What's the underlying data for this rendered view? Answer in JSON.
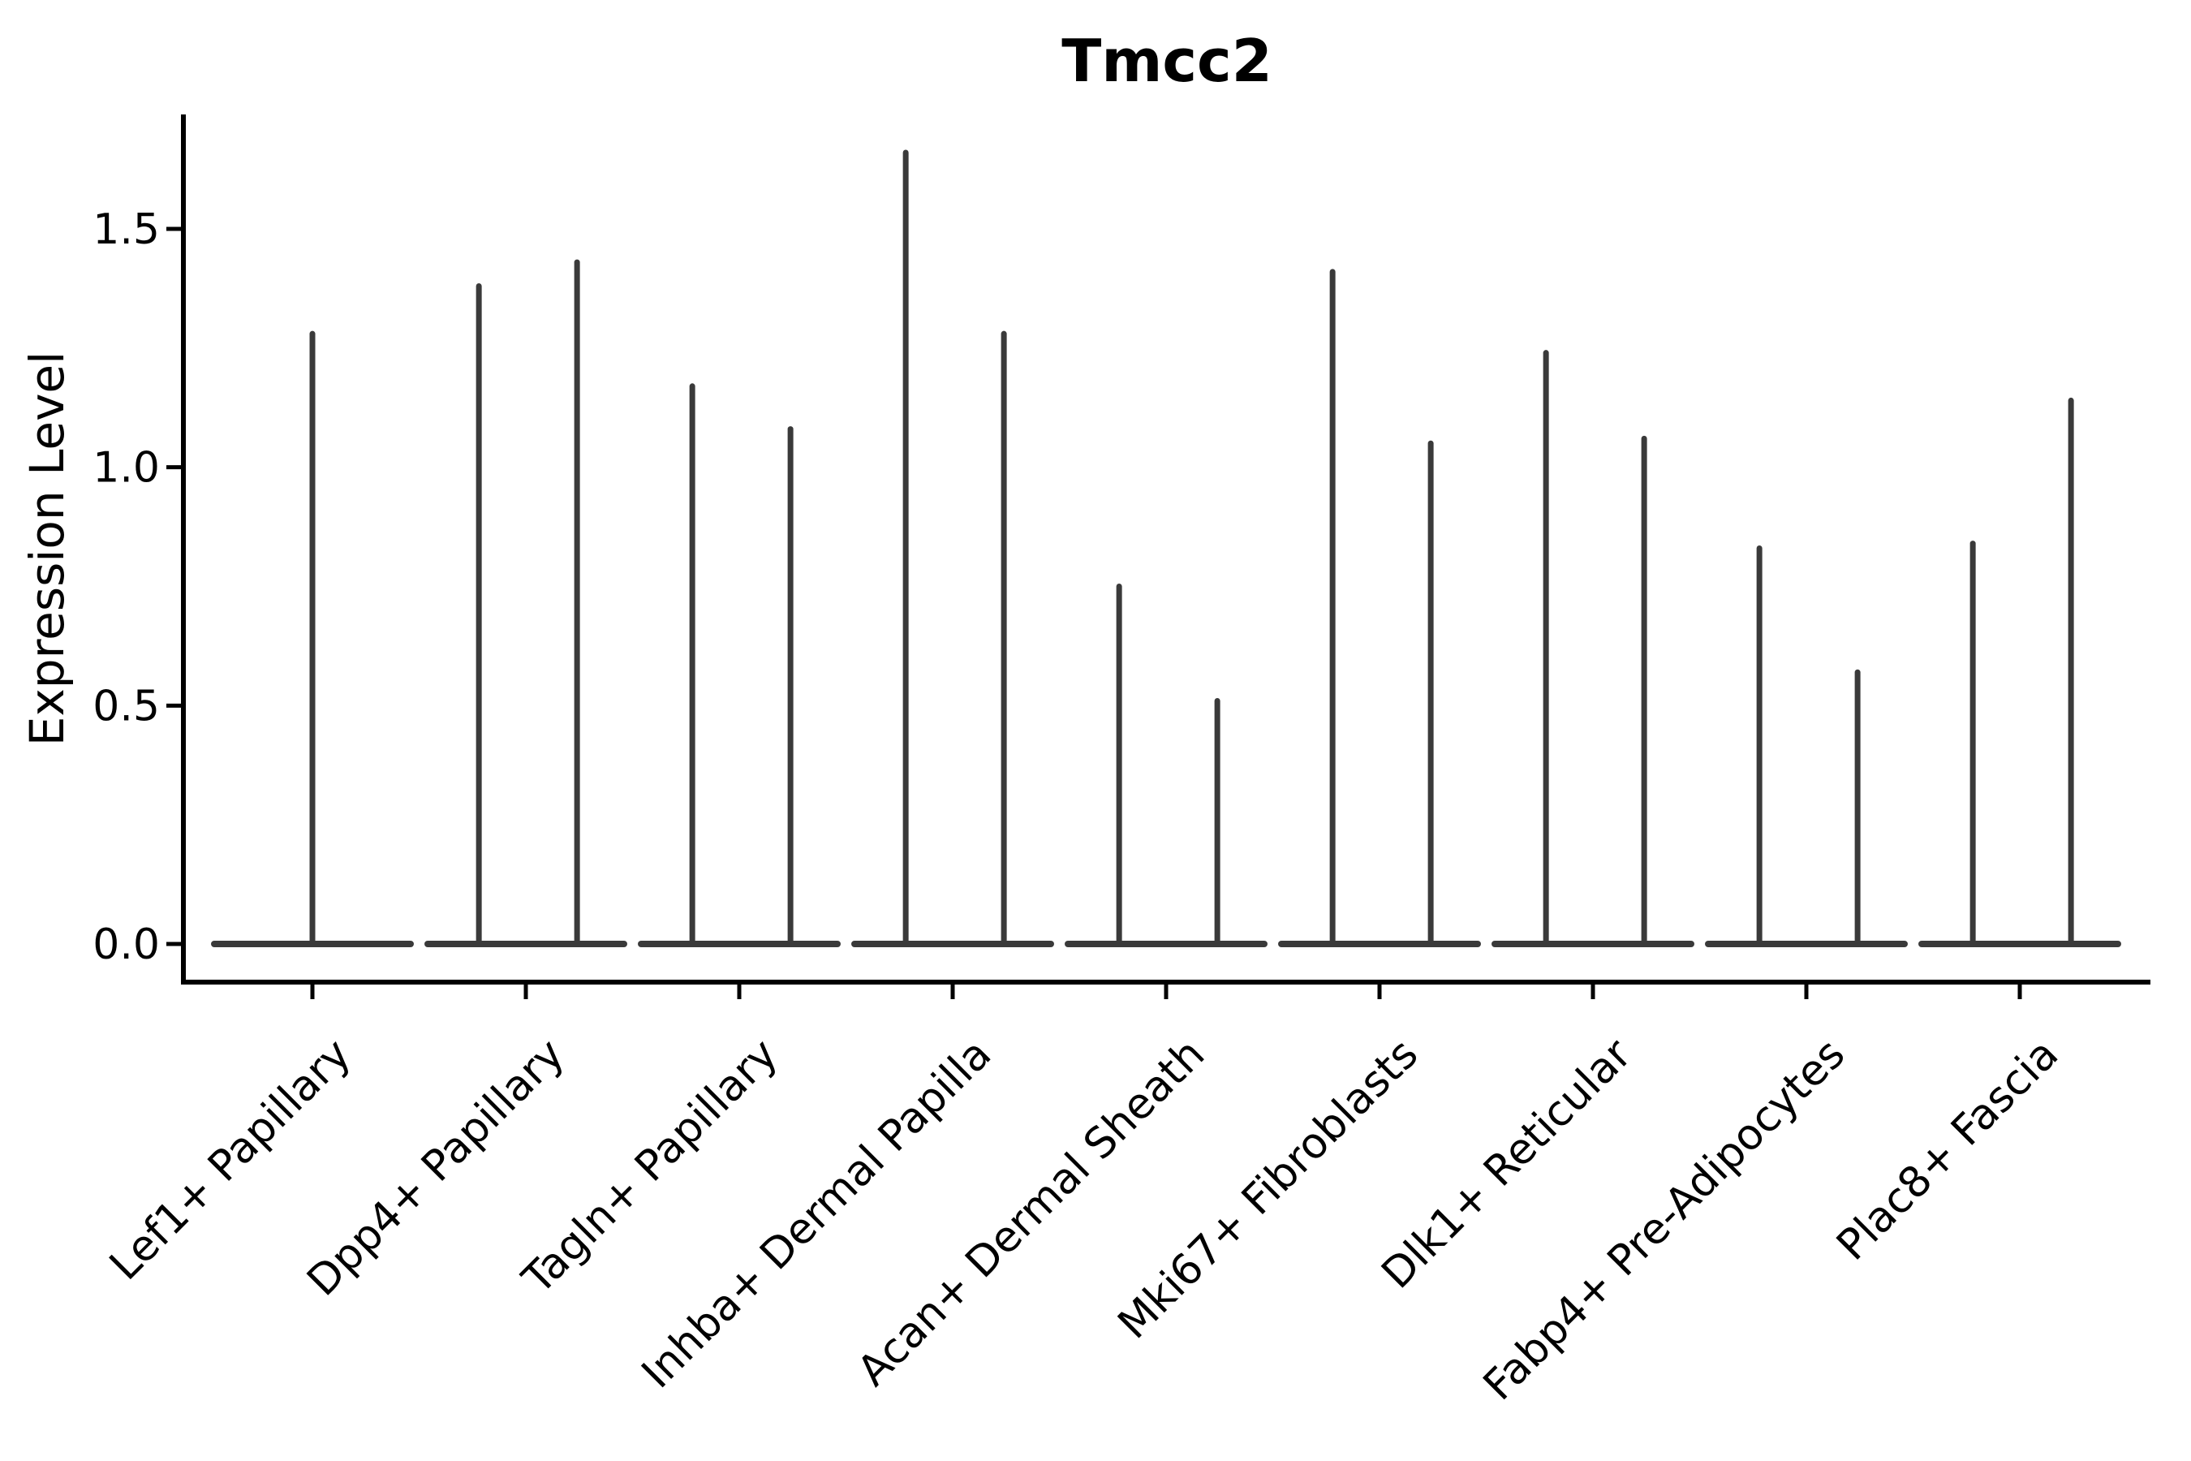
{
  "chart_data": {
    "type": "violin",
    "title": "Tmcc2",
    "xlabel": "",
    "ylabel": "Expression Level",
    "ytick_values": [
      0.0,
      0.5,
      1.0,
      1.5
    ],
    "ytick_labels": [
      "0.0",
      "0.5",
      "1.0",
      "1.5"
    ],
    "ylim": [
      -0.08,
      1.74
    ],
    "grid": false,
    "legend": "none",
    "x_tick_rotation_deg": 45,
    "colors": {
      "violin": "#3a3a3a",
      "axis": "#000000",
      "text": "#000000",
      "background": "#ffffff"
    },
    "categories": [
      "Lef1+ Papillary",
      "Dpp4+ Papillary",
      "Tagln+ Papillary",
      "Inhba+ Dermal Papilla",
      "Acan+ Dermal Sheath",
      "Mki67+ Fibroblasts",
      "Dlk1+ Reticular",
      "Fabp4+ Pre-Adipocytes",
      "Plac8+ Fascia"
    ],
    "base_value": 0.0,
    "base_half_width_frac": 0.46,
    "violins": [
      {
        "category": "Lef1+ Papillary",
        "spikes": [
          {
            "offset_frac": 0.0,
            "max": 1.28
          }
        ]
      },
      {
        "category": "Dpp4+ Papillary",
        "spikes": [
          {
            "offset_frac": -0.22,
            "max": 1.38
          },
          {
            "offset_frac": 0.24,
            "max": 1.43
          }
        ]
      },
      {
        "category": "Tagln+ Papillary",
        "spikes": [
          {
            "offset_frac": -0.22,
            "max": 1.17
          },
          {
            "offset_frac": 0.24,
            "max": 1.08
          }
        ]
      },
      {
        "category": "Inhba+ Dermal Papilla",
        "spikes": [
          {
            "offset_frac": -0.22,
            "max": 1.66
          },
          {
            "offset_frac": 0.24,
            "max": 1.28
          }
        ]
      },
      {
        "category": "Acan+ Dermal Sheath",
        "spikes": [
          {
            "offset_frac": -0.22,
            "max": 0.75
          },
          {
            "offset_frac": 0.24,
            "max": 0.51
          }
        ]
      },
      {
        "category": "Mki67+ Fibroblasts",
        "spikes": [
          {
            "offset_frac": -0.22,
            "max": 1.41
          },
          {
            "offset_frac": 0.24,
            "max": 1.05
          }
        ]
      },
      {
        "category": "Dlk1+ Reticular",
        "spikes": [
          {
            "offset_frac": -0.22,
            "max": 1.24
          },
          {
            "offset_frac": 0.24,
            "max": 1.06
          }
        ]
      },
      {
        "category": "Fabp4+ Pre-Adipocytes",
        "spikes": [
          {
            "offset_frac": -0.22,
            "max": 0.83
          },
          {
            "offset_frac": 0.24,
            "max": 0.57
          }
        ]
      },
      {
        "category": "Plac8+ Fascia",
        "spikes": [
          {
            "offset_frac": -0.22,
            "max": 0.84
          },
          {
            "offset_frac": 0.24,
            "max": 1.14
          }
        ]
      }
    ]
  }
}
